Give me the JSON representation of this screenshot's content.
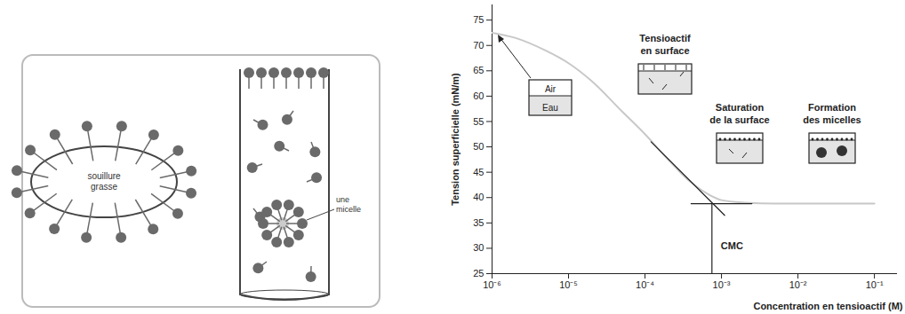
{
  "chart_data": {
    "type": "line",
    "x_label": "Concentration en tensioactif (M)",
    "y_label": "Tension superficielle (mN/m)",
    "log": "x",
    "grid": false,
    "x": [
      1e-06,
      2e-06,
      5e-06,
      1e-05,
      2e-05,
      5e-05,
      0.0001,
      0.0002,
      0.0004,
      0.0007,
      0.001,
      0.002,
      0.005,
      0.01,
      0.1
    ],
    "values": [
      72.5,
      71.5,
      69,
      66.5,
      63,
      57,
      52.5,
      47.5,
      43,
      40.5,
      39.5,
      39,
      38.8,
      38.8,
      38.8
    ],
    "color": "#c8c8c8",
    "xlim": [
      1e-06,
      0.2
    ],
    "ylim": [
      25,
      78
    ],
    "xticks": [
      {
        "value": 1e-06,
        "label": "10⁻⁶"
      },
      {
        "value": 1e-05,
        "label": "10⁻⁵"
      },
      {
        "value": 0.0001,
        "label": "10⁻⁴"
      },
      {
        "value": 0.001,
        "label": "10⁻³"
      },
      {
        "value": 0.01,
        "label": "10⁻²"
      },
      {
        "value": 0.1,
        "label": "10⁻¹"
      }
    ],
    "yticks": [
      25,
      30,
      35,
      40,
      45,
      50,
      55,
      60,
      65,
      70,
      75
    ],
    "tangent": {
      "x": [
        0.00012,
        0.0011
      ],
      "y": [
        51,
        36.5
      ]
    },
    "plateau": {
      "x": [
        0.0004,
        0.0025
      ],
      "y": [
        38.8,
        38.8
      ]
    },
    "cmc": {
      "value": 0.00075,
      "label": "CMC",
      "y": [
        38.8,
        25
      ]
    },
    "insets": [
      {
        "labels": [
          "Air",
          "Eau"
        ]
      },
      {
        "title": [
          "Tensioactif",
          "en surface"
        ]
      },
      {
        "title": [
          "Saturation",
          "de la surface"
        ]
      },
      {
        "title": [
          "Formation",
          "des micelles"
        ]
      }
    ]
  },
  "diagram": {
    "soil_label": [
      "souillure",
      "grasse"
    ],
    "micelle_label": [
      "une",
      "micelle"
    ]
  }
}
